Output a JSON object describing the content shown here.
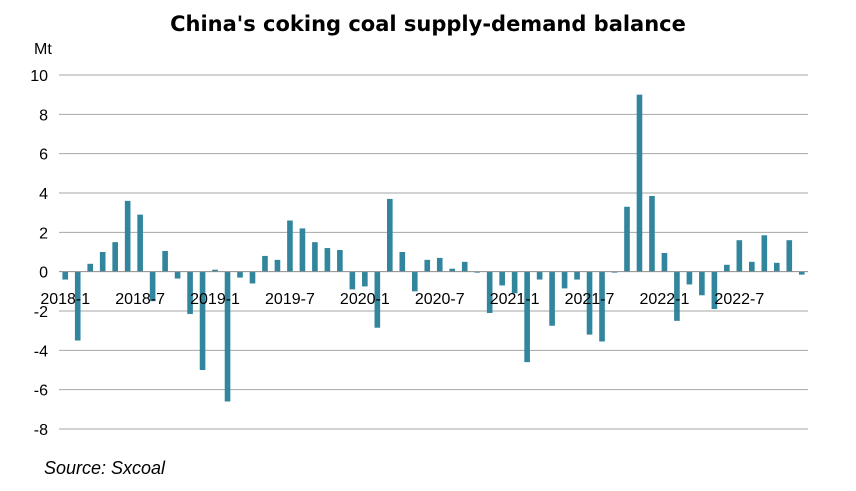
{
  "chart_data": {
    "type": "bar",
    "title": "China's coking coal supply-demand balance",
    "ylabel": "Mt",
    "ylim": [
      -8,
      10
    ],
    "yticks": [
      -8,
      -6,
      -4,
      -2,
      0,
      2,
      4,
      6,
      8,
      10
    ],
    "grid": true,
    "legend": "none",
    "bar_color": "#31859c",
    "source": "Source: Sxcoal",
    "tick_labels": [
      "2018-1",
      "2018-7",
      "2019-1",
      "2019-7",
      "2020-1",
      "2020-7",
      "2021-1",
      "2021-7",
      "2022-1",
      "2022-7"
    ],
    "tick_label_indices": [
      0,
      6,
      12,
      18,
      24,
      30,
      36,
      42,
      48,
      54
    ],
    "categories": [
      "2018-1",
      "2018-2",
      "2018-3",
      "2018-4",
      "2018-5",
      "2018-6",
      "2018-7",
      "2018-8",
      "2018-9",
      "2018-10",
      "2018-11",
      "2018-12",
      "2019-1",
      "2019-2",
      "2019-3",
      "2019-4",
      "2019-5",
      "2019-6",
      "2019-7",
      "2019-8",
      "2019-9",
      "2019-10",
      "2019-11",
      "2019-12",
      "2020-1",
      "2020-2",
      "2020-3",
      "2020-4",
      "2020-5",
      "2020-6",
      "2020-7",
      "2020-8",
      "2020-9",
      "2020-10",
      "2020-11",
      "2020-12",
      "2021-1",
      "2021-2",
      "2021-3",
      "2021-4",
      "2021-5",
      "2021-6",
      "2021-7",
      "2021-8",
      "2021-9",
      "2021-10",
      "2021-11",
      "2021-12",
      "2022-1",
      "2022-2",
      "2022-3",
      "2022-4",
      "2022-5",
      "2022-6",
      "2022-7",
      "2022-8",
      "2022-9",
      "2022-10",
      "2022-11",
      "2022-12"
    ],
    "values": [
      -0.4,
      -3.5,
      0.4,
      1.0,
      1.5,
      3.6,
      2.9,
      -1.5,
      1.05,
      -0.35,
      -2.15,
      -5.0,
      0.1,
      -6.6,
      -0.3,
      -0.6,
      0.8,
      0.6,
      2.6,
      2.2,
      1.5,
      1.2,
      1.1,
      -0.9,
      -0.75,
      -2.85,
      3.7,
      1.0,
      -1.0,
      0.6,
      0.7,
      0.15,
      0.5,
      -0.05,
      -2.1,
      -0.7,
      -1.1,
      -4.6,
      -0.4,
      -2.75,
      -0.85,
      -0.4,
      -3.2,
      -3.55,
      -0.05,
      3.3,
      9.0,
      3.85,
      0.95,
      -2.5,
      -0.65,
      -1.2,
      -1.9,
      0.35,
      1.6,
      0.5,
      1.85,
      0.45,
      1.6,
      -0.15
    ]
  }
}
